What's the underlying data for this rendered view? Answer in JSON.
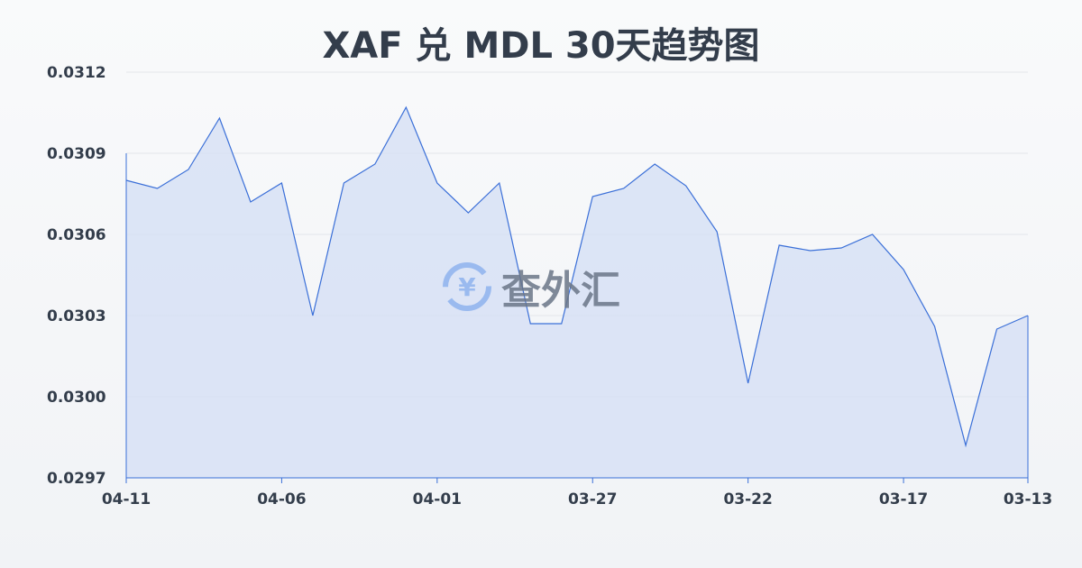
{
  "title": "XAF 兑 MDL 30天趋势图",
  "watermark": "查外汇",
  "colors": {
    "line": "#3a6fd8",
    "fill": "#d6e0f5",
    "grid": "#e3e6ea",
    "text": "#333d4b"
  },
  "chart_data": {
    "type": "area",
    "title": "XAF 兑 MDL 30天趋势图",
    "xlabel": "",
    "ylabel": "",
    "ylim": [
      0.0297,
      0.0312
    ],
    "yticks": [
      "0.0312",
      "0.0309",
      "0.0306",
      "0.0303",
      "0.0300",
      "0.0297"
    ],
    "xticks": [
      "04-11",
      "04-06",
      "04-01",
      "03-27",
      "03-22",
      "03-17",
      "03-13"
    ],
    "grid": true,
    "x": [
      "04-11",
      "04-10",
      "04-09",
      "04-08",
      "04-07",
      "04-06",
      "04-05",
      "04-04",
      "04-03",
      "04-02",
      "04-01",
      "03-31",
      "03-30",
      "03-29",
      "03-28",
      "03-27",
      "03-26",
      "03-25",
      "03-24",
      "03-23",
      "03-22",
      "03-21",
      "03-20",
      "03-19",
      "03-18",
      "03-17",
      "03-16",
      "03-15",
      "03-14",
      "03-13"
    ],
    "values": [
      0.0308,
      0.03077,
      0.03084,
      0.03103,
      0.03072,
      0.03079,
      0.0303,
      0.03079,
      0.03086,
      0.03107,
      0.03079,
      0.03068,
      0.03079,
      0.03027,
      0.03027,
      0.03074,
      0.03077,
      0.03086,
      0.03078,
      0.03061,
      0.03005,
      0.03056,
      0.03054,
      0.03055,
      0.0306,
      0.03047,
      0.03026,
      0.02982,
      0.03025,
      0.0303
    ]
  }
}
